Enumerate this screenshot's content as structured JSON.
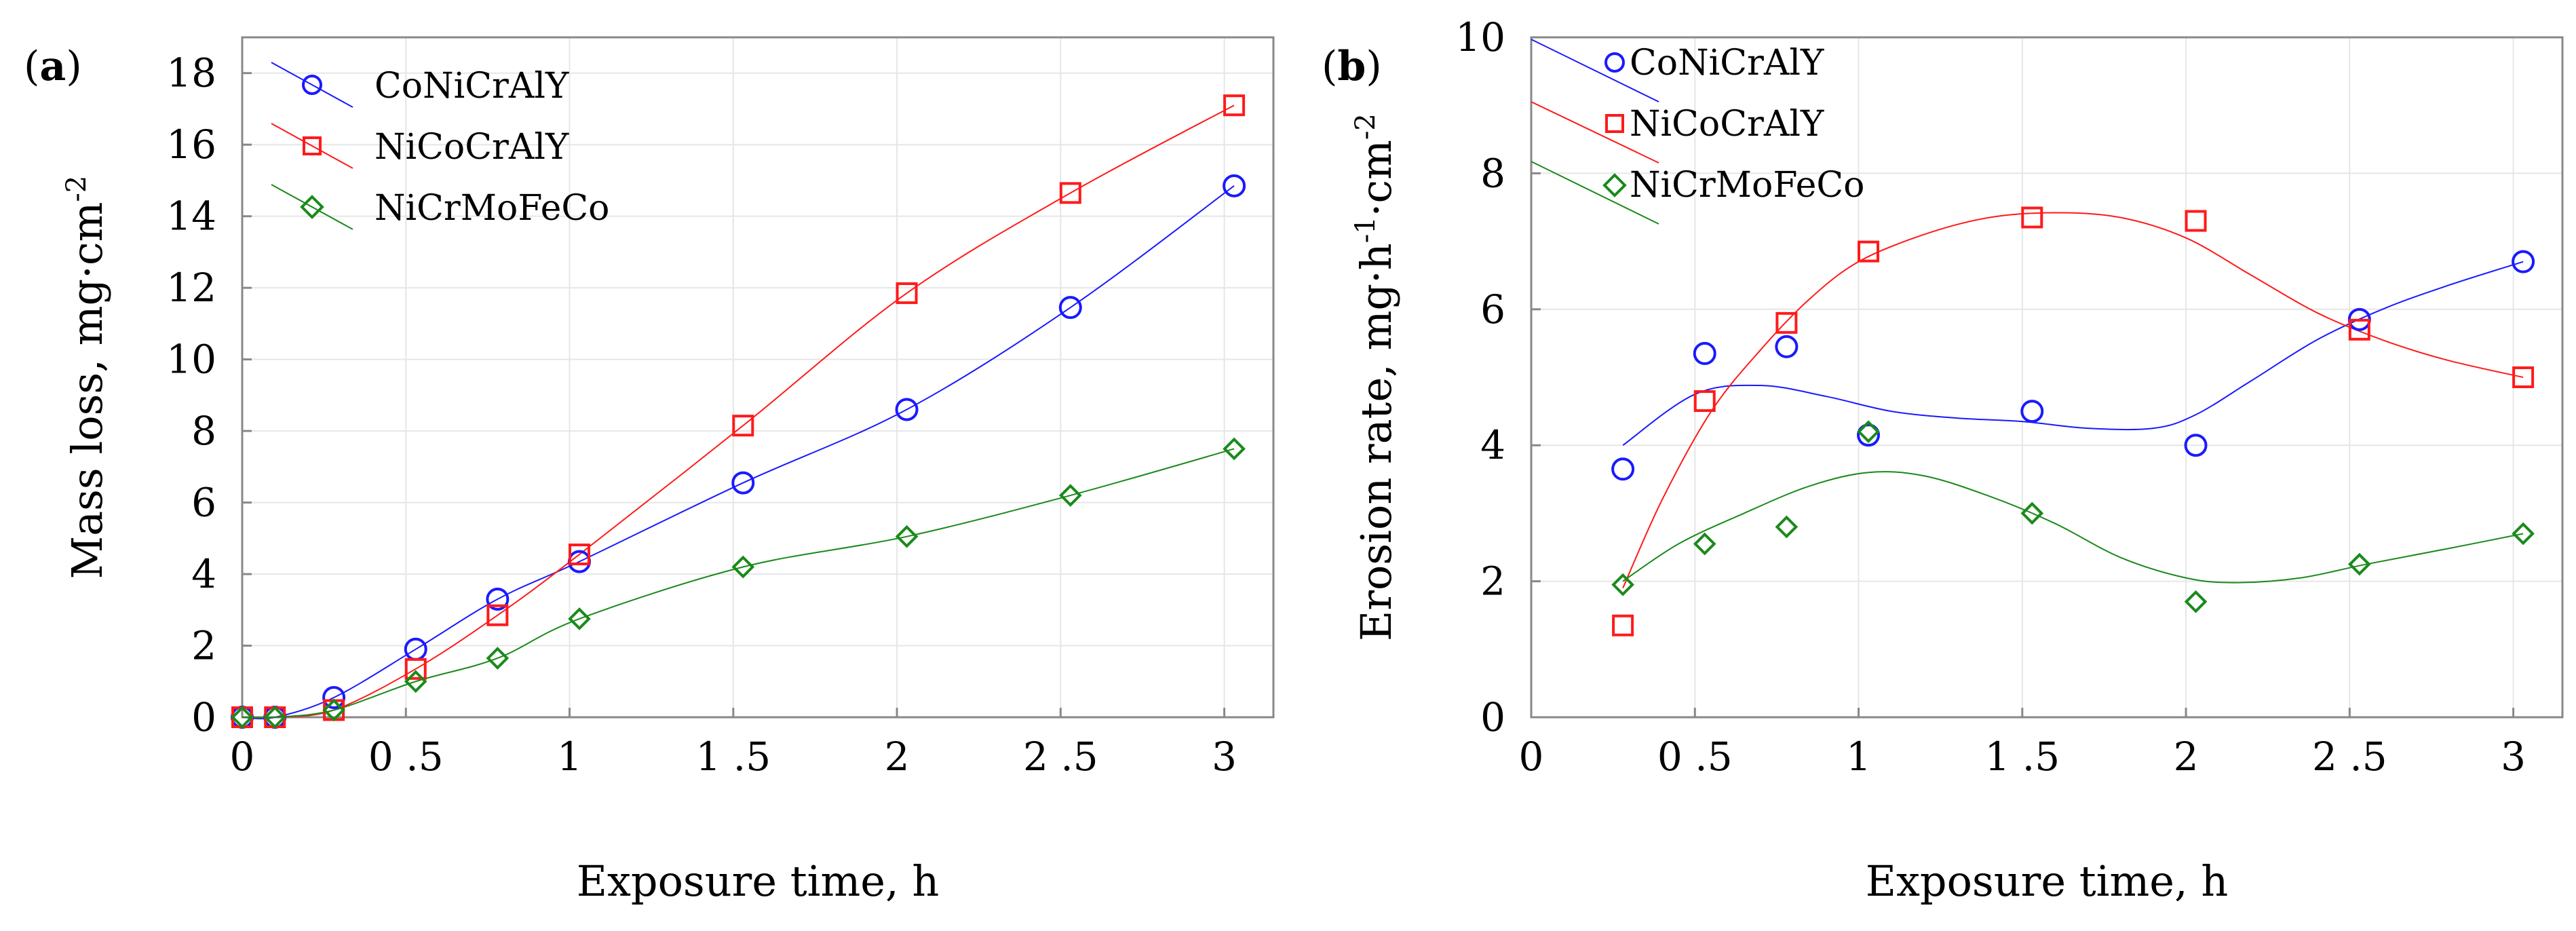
{
  "chart_data": [
    {
      "panel": "a",
      "panel_label_open": "(",
      "panel_label_letter": "a",
      "panel_label_close": ")",
      "type": "line",
      "title": "",
      "xlabel": "Exposure time, h",
      "ylabel": "Mass loss, mg·cm",
      "ylabel_sup": "-2",
      "xlim": [
        0,
        3.15
      ],
      "ylim": [
        0,
        19
      ],
      "xticks": [
        0,
        0.5,
        1,
        1.5,
        2,
        2.5,
        3
      ],
      "xtick_labels": [
        "0",
        "0 .5",
        "1",
        "1 .5",
        "2",
        "2 .5",
        "3"
      ],
      "yticks": [
        0,
        2,
        4,
        6,
        8,
        10,
        12,
        14,
        16,
        18
      ],
      "ytick_labels": [
        "0",
        "2",
        "4",
        "6",
        "8",
        "10",
        "12",
        "14",
        "16",
        "18"
      ],
      "grid": true,
      "legend_position": "top-left",
      "series": [
        {
          "name": "CoNiCrAlY",
          "color": "#1a1aff",
          "marker": "circle",
          "x": [
            0,
            0.1,
            0.28,
            0.53,
            0.78,
            1.03,
            1.53,
            2.03,
            2.53,
            3.03
          ],
          "y": [
            0,
            0,
            0.55,
            1.9,
            3.3,
            4.35,
            6.55,
            8.6,
            11.45,
            14.85
          ],
          "curve_x": [
            0,
            0.1,
            0.28,
            0.53,
            0.78,
            1.03,
            1.53,
            2.03,
            2.53,
            3.03
          ],
          "curve_y": [
            0,
            0,
            0.55,
            1.9,
            3.3,
            4.35,
            6.55,
            8.6,
            11.45,
            14.85
          ]
        },
        {
          "name": "NiCoCrAlY",
          "color": "#ff1a1a",
          "marker": "square",
          "x": [
            0,
            0.1,
            0.28,
            0.53,
            0.78,
            1.03,
            1.53,
            2.03,
            2.53,
            3.03
          ],
          "y": [
            0,
            0,
            0.2,
            1.35,
            2.85,
            4.55,
            8.15,
            11.85,
            14.65,
            17.1
          ],
          "curve_x": [
            0,
            0.1,
            0.28,
            0.53,
            0.78,
            1.03,
            1.53,
            2.03,
            2.53,
            3.03
          ],
          "curve_y": [
            0,
            0,
            0.2,
            1.35,
            2.85,
            4.55,
            8.15,
            11.85,
            14.65,
            17.1
          ]
        },
        {
          "name": "NiCrMoFeCo",
          "color": "#1a8a1a",
          "marker": "diamond",
          "x": [
            0,
            0.1,
            0.28,
            0.53,
            0.78,
            1.03,
            1.53,
            2.03,
            2.53,
            3.03
          ],
          "y": [
            0,
            0,
            0.2,
            1.0,
            1.65,
            2.75,
            4.2,
            5.05,
            6.2,
            7.5
          ],
          "curve_x": [
            0,
            0.1,
            0.28,
            0.53,
            0.78,
            1.03,
            1.53,
            2.03,
            2.53,
            3.03
          ],
          "curve_y": [
            0,
            0,
            0.2,
            1.0,
            1.65,
            2.75,
            4.2,
            5.05,
            6.2,
            7.5
          ]
        }
      ]
    },
    {
      "panel": "b",
      "panel_label_open": "(",
      "panel_label_letter": "b",
      "panel_label_close": ")",
      "type": "scatter",
      "title": "",
      "xlabel": "Exposure time, h",
      "ylabel": "Erosion rate, mg·h",
      "ylabel_sup1": "-1",
      "ylabel_mid": "·cm",
      "ylabel_sup2": "-2",
      "xlim": [
        0,
        3.15
      ],
      "ylim": [
        0,
        10
      ],
      "xticks": [
        0,
        0.5,
        1,
        1.5,
        2,
        2.5,
        3
      ],
      "xtick_labels": [
        "0",
        "0 .5",
        "1",
        "1 .5",
        "2",
        "2 .5",
        "3"
      ],
      "yticks": [
        0,
        2,
        4,
        6,
        8,
        10
      ],
      "ytick_labels": [
        "0",
        "2",
        "4",
        "6",
        "8",
        "10"
      ],
      "grid": true,
      "legend_position": "top-left",
      "series": [
        {
          "name": "CoNiCrAlY",
          "color": "#1a1aff",
          "marker": "circle",
          "x": [
            0.28,
            0.53,
            0.78,
            1.03,
            1.53,
            2.03,
            2.53,
            3.03
          ],
          "y": [
            3.65,
            5.35,
            5.45,
            4.15,
            4.5,
            4.0,
            5.85,
            6.7
          ],
          "curve_x": [
            0.28,
            0.5,
            0.7,
            0.9,
            1.1,
            1.3,
            1.5,
            1.7,
            1.9,
            2.03,
            2.2,
            2.4,
            2.6,
            2.8,
            3.03
          ],
          "curve_y": [
            4.0,
            4.75,
            4.88,
            4.72,
            4.5,
            4.4,
            4.35,
            4.25,
            4.25,
            4.45,
            4.95,
            5.55,
            6.0,
            6.35,
            6.7
          ]
        },
        {
          "name": "NiCoCrAlY",
          "color": "#ff1a1a",
          "marker": "square",
          "x": [
            0.28,
            0.53,
            0.78,
            1.03,
            1.53,
            2.03,
            2.53,
            3.03
          ],
          "y": [
            1.35,
            4.65,
            5.8,
            6.85,
            7.35,
            7.3,
            5.7,
            5.0
          ],
          "curve_x": [
            0.28,
            0.4,
            0.55,
            0.7,
            0.85,
            1.0,
            1.2,
            1.4,
            1.6,
            1.8,
            2.0,
            2.2,
            2.4,
            2.6,
            2.8,
            3.03
          ],
          "curve_y": [
            1.9,
            3.2,
            4.5,
            5.4,
            6.15,
            6.7,
            7.1,
            7.35,
            7.42,
            7.35,
            7.05,
            6.5,
            5.95,
            5.55,
            5.25,
            5.0
          ]
        },
        {
          "name": "NiCrMoFeCo",
          "color": "#1a8a1a",
          "marker": "diamond",
          "x": [
            0.28,
            0.53,
            0.78,
            1.03,
            1.53,
            2.03,
            2.53,
            3.03
          ],
          "y": [
            1.95,
            2.55,
            2.8,
            4.2,
            3.0,
            1.7,
            2.25,
            2.7
          ],
          "curve_x": [
            0.28,
            0.45,
            0.65,
            0.85,
            1.03,
            1.2,
            1.4,
            1.6,
            1.8,
            2.0,
            2.15,
            2.35,
            2.55,
            2.8,
            3.03
          ],
          "curve_y": [
            2.0,
            2.55,
            3.0,
            3.4,
            3.6,
            3.55,
            3.25,
            2.85,
            2.35,
            2.05,
            1.98,
            2.05,
            2.25,
            2.48,
            2.7
          ]
        }
      ]
    }
  ]
}
